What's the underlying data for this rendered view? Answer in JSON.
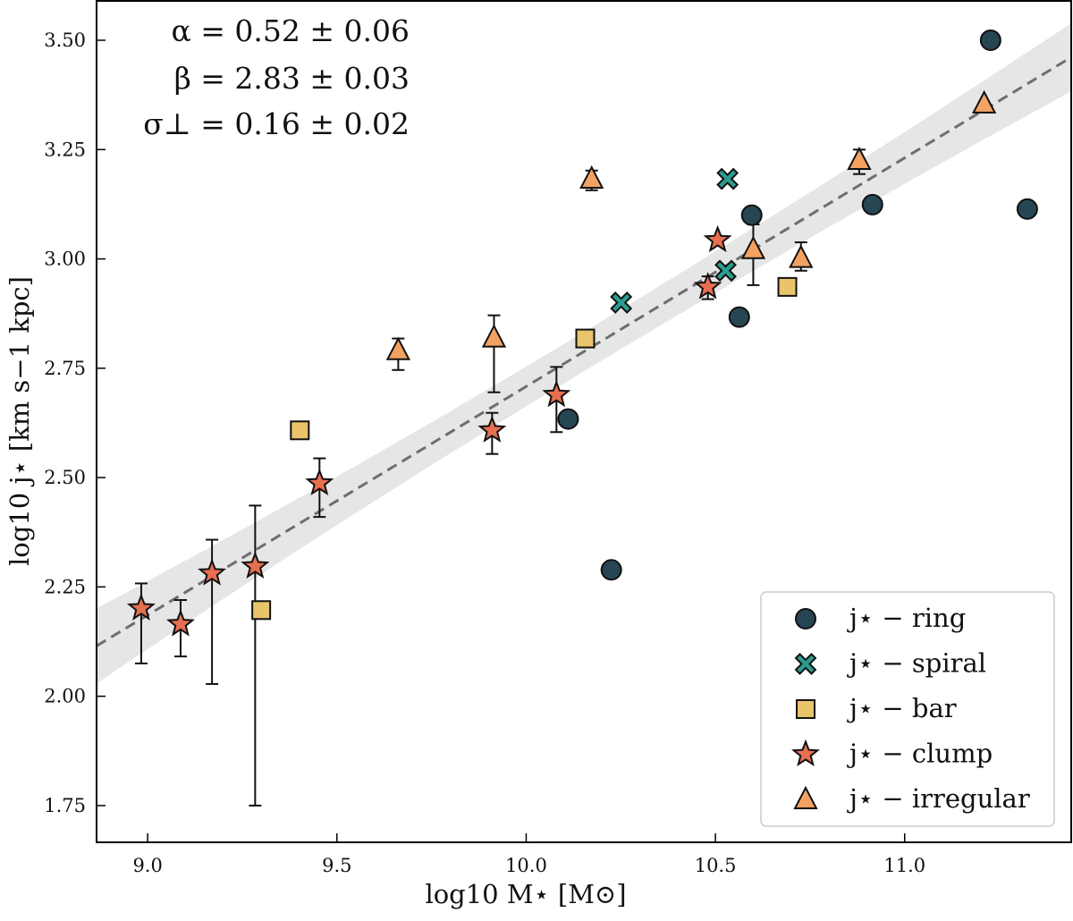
{
  "chart_data": {
    "type": "scatter",
    "xlabel": "log10 M⋆ [M⊙]",
    "ylabel": "log10 j⋆ [km s−1 kpc]",
    "xlim": [
      8.865,
      11.44
    ],
    "ylim": [
      1.666,
      3.59
    ],
    "xticks": [
      9.0,
      9.5,
      10.0,
      10.5,
      11.0
    ],
    "xtick_labels": [
      "9.0",
      "9.5",
      "10.0",
      "10.5",
      "11.0"
    ],
    "yticks": [
      1.75,
      2.0,
      2.25,
      2.5,
      2.75,
      3.0,
      3.25,
      3.5
    ],
    "ytick_labels": [
      "1.75",
      "2.00",
      "2.25",
      "2.50",
      "2.75",
      "3.00",
      "3.25",
      "3.50"
    ],
    "grid": false,
    "legend_position": "bottom-right",
    "annotations": [
      "α = 0.52 ± 0.06",
      "β = 2.83 ± 0.03",
      "σ⊥ = 0.16 ± 0.02"
    ],
    "fit": {
      "style": "dashed",
      "color": "#6e6e6e",
      "band_color": "#e6e6e6",
      "x": [
        8.865,
        11.44
      ],
      "y": [
        2.115,
        3.461
      ],
      "band_halfwidth_at": {
        "x": [
          8.865,
          10.15,
          11.44
        ],
        "halfwidth": [
          0.086,
          0.045,
          0.078
        ]
      }
    },
    "series": [
      {
        "name": "j⋆ − ring",
        "marker": "circle",
        "color": "#264653",
        "points": [
          {
            "x": 11.227,
            "y": 3.5
          },
          {
            "x": 10.596,
            "y": 3.1
          },
          {
            "x": 10.915,
            "y": 3.124
          },
          {
            "x": 11.324,
            "y": 3.114
          },
          {
            "x": 10.563,
            "y": 2.867
          },
          {
            "x": 10.111,
            "y": 2.634
          },
          {
            "x": 10.225,
            "y": 2.289
          }
        ]
      },
      {
        "name": "j⋆ − spiral",
        "marker": "x",
        "color": "#2a9d8f",
        "points": [
          {
            "x": 10.532,
            "y": 3.183
          },
          {
            "x": 10.527,
            "y": 2.973
          },
          {
            "x": 10.251,
            "y": 2.9
          }
        ]
      },
      {
        "name": "j⋆ − bar",
        "marker": "square",
        "color": "#e9c46a",
        "points": [
          {
            "x": 10.156,
            "y": 2.818
          },
          {
            "x": 10.69,
            "y": 2.936
          },
          {
            "x": 9.402,
            "y": 2.608
          },
          {
            "x": 9.3,
            "y": 2.197
          }
        ]
      },
      {
        "name": "j⋆ − clump",
        "marker": "star",
        "color": "#e76f51",
        "points": [
          {
            "x": 8.983,
            "y": 2.201,
            "lo": 2.075,
            "hi": 2.258
          },
          {
            "x": 9.087,
            "y": 2.165,
            "lo": 2.091,
            "hi": 2.22
          },
          {
            "x": 9.17,
            "y": 2.281,
            "lo": 2.028,
            "hi": 2.358
          },
          {
            "x": 9.284,
            "y": 2.297,
            "lo": 1.75,
            "hi": 2.436
          },
          {
            "x": 9.454,
            "y": 2.487,
            "lo": 2.41,
            "hi": 2.544
          },
          {
            "x": 9.91,
            "y": 2.608,
            "lo": 2.554,
            "hi": 2.648
          },
          {
            "x": 10.08,
            "y": 2.689,
            "lo": 2.604,
            "hi": 2.753
          },
          {
            "x": 10.48,
            "y": 2.936,
            "lo": 2.908,
            "hi": 2.96
          },
          {
            "x": 10.506,
            "y": 3.043
          }
        ]
      },
      {
        "name": "j⋆ − irregular",
        "marker": "triangle",
        "color": "#f4a261",
        "points": [
          {
            "x": 9.662,
            "y": 2.791,
            "lo": 2.746,
            "hi": 2.818
          },
          {
            "x": 9.915,
            "y": 2.82,
            "lo": 2.695,
            "hi": 2.871
          },
          {
            "x": 10.173,
            "y": 3.183,
            "lo": 3.157,
            "hi": 3.202
          },
          {
            "x": 10.6,
            "y": 3.022,
            "lo": 2.94,
            "hi": 3.079
          },
          {
            "x": 10.726,
            "y": 3.002,
            "lo": 2.973,
            "hi": 3.038
          },
          {
            "x": 10.88,
            "y": 3.226,
            "lo": 3.194,
            "hi": 3.25
          },
          {
            "x": 11.21,
            "y": 3.355
          }
        ]
      }
    ]
  }
}
